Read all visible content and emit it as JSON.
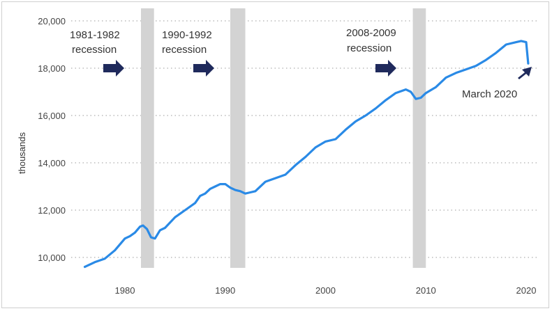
{
  "chart_data": {
    "type": "line",
    "title": "",
    "xlabel": "",
    "ylabel": "thousands",
    "xlim": [
      1976,
      2020.5
    ],
    "ylim": [
      9500,
      20000
    ],
    "y_ticks": [
      10000,
      12000,
      14000,
      16000,
      18000,
      20000
    ],
    "y_tick_labels": [
      "10,000",
      "12,000",
      "14,000",
      "16,000",
      "18,000",
      "20,000"
    ],
    "x_ticks": [
      1980,
      1990,
      2000,
      2010,
      2020
    ],
    "x_tick_labels": [
      "1980",
      "1990",
      "2000",
      "2010",
      "2020"
    ],
    "grid": "horizontal-dotted",
    "line_color": "#2a8ae6",
    "recession_color": "#d3d3d3",
    "arrow_color": "#1f2a5c",
    "recessions": [
      {
        "start": 1981.6,
        "end": 1982.9
      },
      {
        "start": 1990.5,
        "end": 1992.0
      },
      {
        "start": 2008.7,
        "end": 2010.0
      }
    ],
    "annotations": [
      {
        "line1": "1981-1982",
        "line2": "recession"
      },
      {
        "line1": "1990-1992",
        "line2": "recession"
      },
      {
        "line1": "2008-2009",
        "line2": "recession"
      },
      {
        "line1": "March 2020",
        "line2": ""
      }
    ],
    "series": [
      {
        "x": [
          1976.0,
          1977.0,
          1978.0,
          1979.0,
          1979.5,
          1980.0,
          1980.5,
          1981.0,
          1981.5,
          1981.8,
          1982.2,
          1982.6,
          1983.0,
          1983.5,
          1984.0,
          1985.0,
          1986.0,
          1987.0,
          1987.5,
          1988.0,
          1988.5,
          1989.0,
          1989.5,
          1990.0,
          1990.5,
          1991.0,
          1991.5,
          1992.0,
          1992.5,
          1993.0,
          1994.0,
          1995.0,
          1996.0,
          1997.0,
          1998.0,
          1999.0,
          2000.0,
          2001.0,
          2002.0,
          2003.0,
          2004.0,
          2005.0,
          2006.0,
          2007.0,
          2008.0,
          2008.5,
          2009.0,
          2009.5,
          2010.0,
          2011.0,
          2012.0,
          2013.0,
          2014.0,
          2015.0,
          2016.0,
          2017.0,
          2018.0,
          2019.0,
          2019.5,
          2020.0,
          2020.2
        ],
        "values": [
          9600,
          9800,
          9950,
          10300,
          10550,
          10800,
          10900,
          11050,
          11300,
          11350,
          11200,
          10850,
          10800,
          11150,
          11250,
          11700,
          12000,
          12300,
          12600,
          12700,
          12900,
          13000,
          13100,
          13100,
          12950,
          12850,
          12800,
          12700,
          12750,
          12800,
          13200,
          13350,
          13500,
          13900,
          14250,
          14650,
          14900,
          15000,
          15400,
          15750,
          16000,
          16300,
          16650,
          16950,
          17100,
          17000,
          16700,
          16750,
          16950,
          17200,
          17600,
          17800,
          17950,
          18100,
          18350,
          18650,
          19000,
          19100,
          19150,
          19100,
          18200
        ]
      }
    ]
  }
}
